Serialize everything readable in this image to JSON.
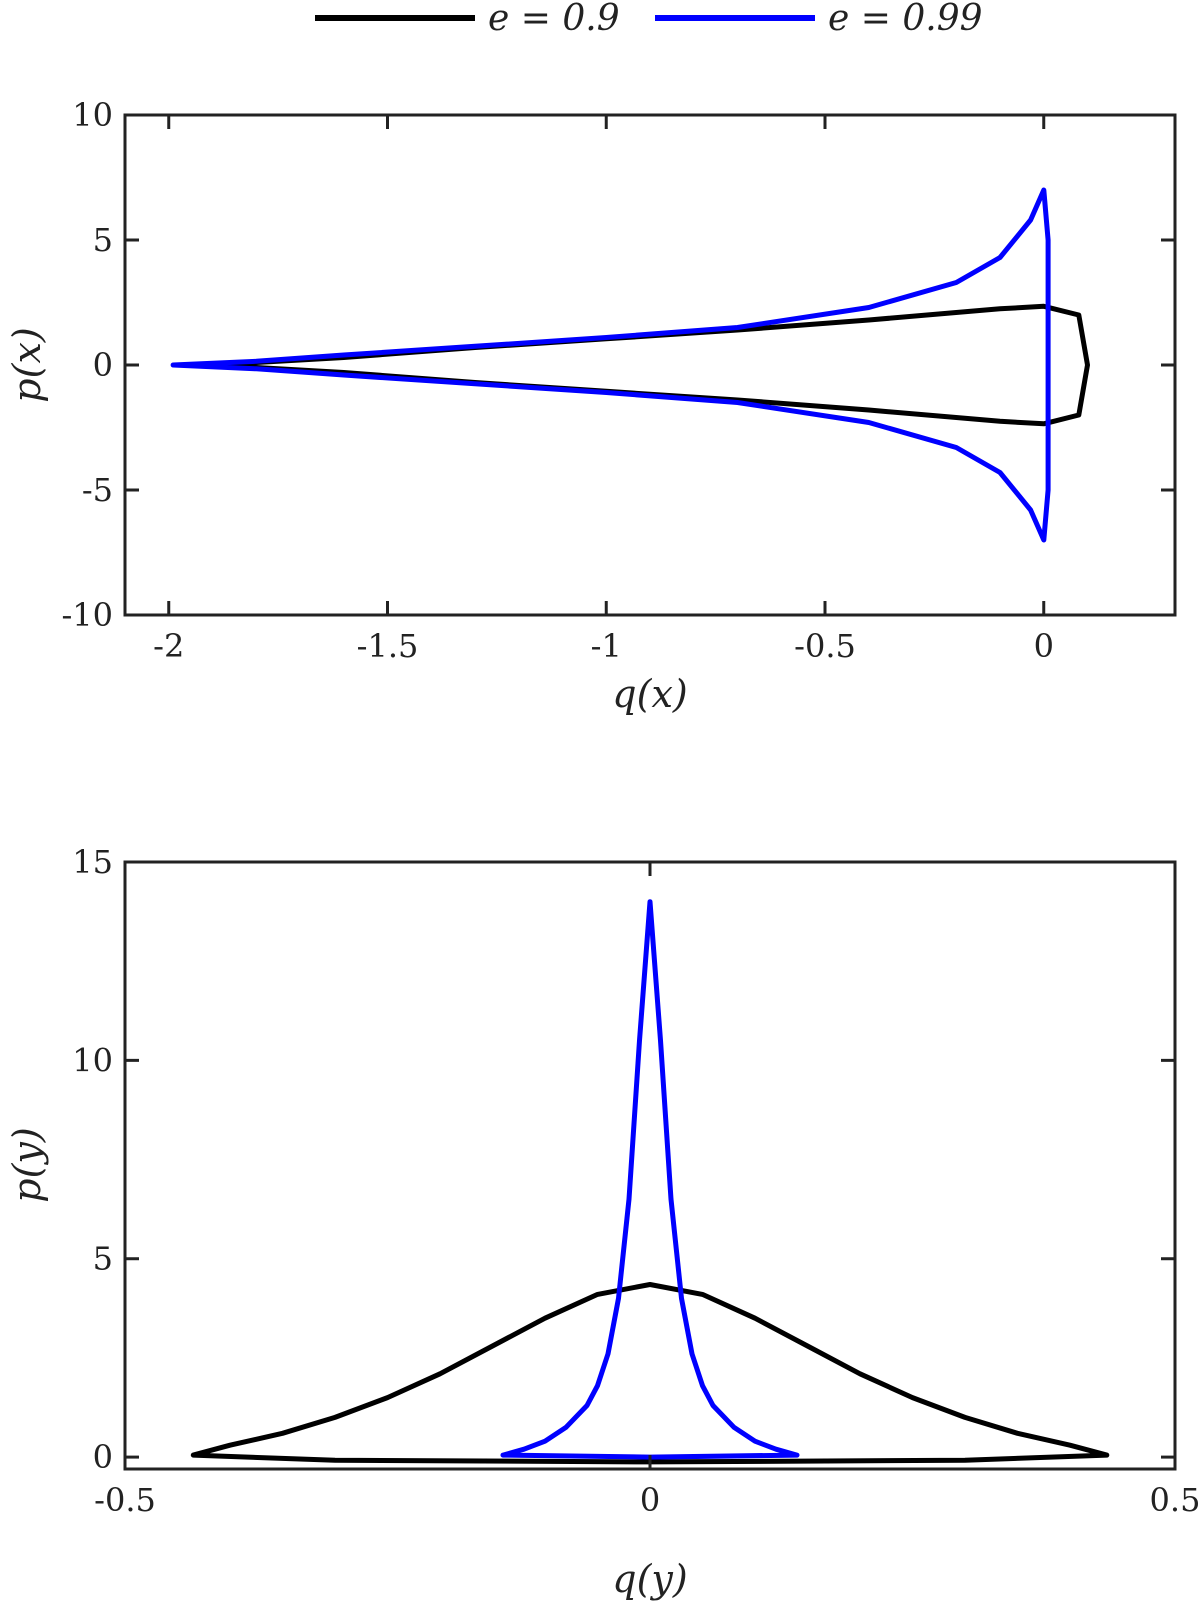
{
  "legend": [
    {
      "label": "e = 0.9",
      "color": "#000000"
    },
    {
      "label": "e = 0.99",
      "color": "#0000ff"
    }
  ],
  "chart_data": [
    {
      "type": "line",
      "xlabel": "q(x)",
      "ylabel": "p(x)",
      "xlim": [
        -2.1,
        0.3
      ],
      "ylim": [
        -10,
        10
      ],
      "xticks": [
        -2,
        -1.5,
        -1,
        -0.5,
        0
      ],
      "xtick_labels": [
        "-2",
        "-1.5",
        "-1",
        "-0.5",
        "0"
      ],
      "yticks": [
        -10,
        -5,
        0,
        5,
        10
      ],
      "ytick_labels": [
        "-10",
        "-5",
        "0",
        "5",
        "10"
      ],
      "grid": false,
      "series": [
        {
          "name": "e = 0.9",
          "color": "#000000",
          "x": [
            -1.9,
            -1.6,
            -1.3,
            -1.0,
            -0.7,
            -0.4,
            -0.1,
            0.0,
            0.08,
            0.1,
            0.08,
            0.0,
            -0.1,
            -0.4,
            -0.7,
            -1.0,
            -1.3,
            -1.6,
            -1.9
          ],
          "y": [
            0,
            0.3,
            0.7,
            1.05,
            1.4,
            1.8,
            2.25,
            2.35,
            2.0,
            0,
            -2.0,
            -2.35,
            -2.25,
            -1.8,
            -1.4,
            -1.05,
            -0.7,
            -0.3,
            0
          ]
        },
        {
          "name": "e = 0.99",
          "color": "#0000ff",
          "x": [
            -1.99,
            -1.8,
            -1.6,
            -1.3,
            -1.0,
            -0.7,
            -0.4,
            -0.2,
            -0.1,
            -0.03,
            0.0,
            0.01,
            0.01,
            0.01,
            0.0,
            -0.03,
            -0.1,
            -0.2,
            -0.4,
            -0.7,
            -1.0,
            -1.3,
            -1.6,
            -1.8,
            -1.99
          ],
          "y": [
            0,
            0.15,
            0.4,
            0.75,
            1.1,
            1.5,
            2.3,
            3.3,
            4.3,
            5.8,
            7.0,
            5.0,
            0,
            -5.0,
            -7.0,
            -5.8,
            -4.3,
            -3.3,
            -2.3,
            -1.5,
            -1.1,
            -0.75,
            -0.4,
            -0.15,
            0
          ]
        }
      ]
    },
    {
      "type": "line",
      "xlabel": "q(y)",
      "ylabel": "p(y)",
      "xlim": [
        -0.5,
        0.5
      ],
      "ylim": [
        -0.3,
        15
      ],
      "xticks": [
        -0.5,
        0,
        0.5
      ],
      "xtick_labels": [
        "-0.5",
        "0",
        "0.5"
      ],
      "yticks": [
        0,
        5,
        10,
        15
      ],
      "ytick_labels": [
        "0",
        "5",
        "10",
        "15"
      ],
      "grid": false,
      "series": [
        {
          "name": "e = 0.9",
          "color": "#000000",
          "x": [
            -0.435,
            -0.4,
            -0.35,
            -0.3,
            -0.25,
            -0.2,
            -0.15,
            -0.1,
            -0.05,
            0.0,
            0.05,
            0.1,
            0.15,
            0.2,
            0.25,
            0.3,
            0.35,
            0.4,
            0.435,
            0.3,
            0.0,
            -0.3,
            -0.435
          ],
          "y": [
            0.05,
            0.3,
            0.6,
            1.0,
            1.5,
            2.1,
            2.8,
            3.5,
            4.1,
            4.35,
            4.1,
            3.5,
            2.8,
            2.1,
            1.5,
            1.0,
            0.6,
            0.3,
            0.05,
            -0.08,
            -0.12,
            -0.08,
            0.05
          ]
        },
        {
          "name": "e = 0.99",
          "color": "#0000ff",
          "x": [
            -0.14,
            -0.12,
            -0.1,
            -0.08,
            -0.06,
            -0.05,
            -0.04,
            -0.03,
            -0.02,
            -0.01,
            0.0,
            0.01,
            0.02,
            0.03,
            0.04,
            0.05,
            0.06,
            0.08,
            0.1,
            0.12,
            0.14,
            0.0,
            -0.14
          ],
          "y": [
            0.05,
            0.2,
            0.4,
            0.75,
            1.3,
            1.8,
            2.6,
            4.0,
            6.5,
            10.5,
            14.0,
            10.5,
            6.5,
            4.0,
            2.6,
            1.8,
            1.3,
            0.75,
            0.4,
            0.2,
            0.05,
            0.0,
            0.05
          ]
        }
      ]
    }
  ]
}
